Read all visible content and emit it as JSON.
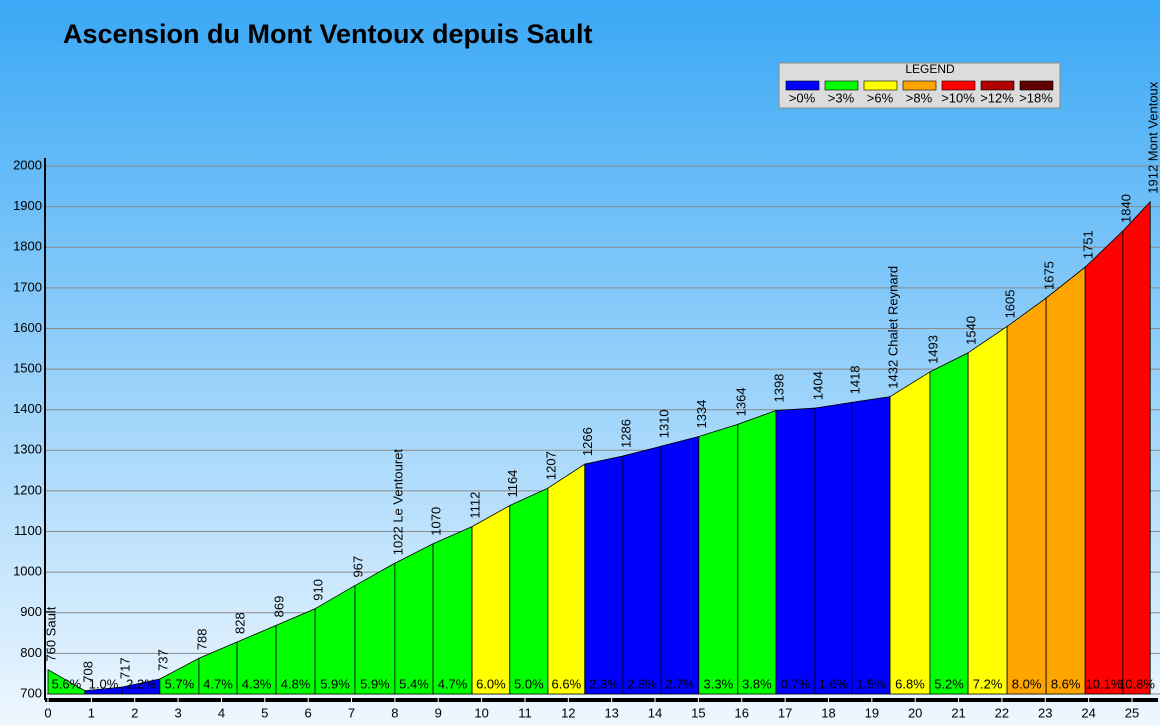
{
  "chart_data": {
    "type": "profile",
    "title": "Ascension du Mont Ventoux depuis Sault",
    "x": [
      0,
      0.85,
      1.71,
      2.58,
      3.48,
      4.36,
      5.26,
      6.16,
      7.08,
      8.0,
      8.88,
      9.78,
      10.65,
      11.53,
      12.38,
      13.26,
      14.14,
      15.01,
      15.91,
      16.79,
      17.69,
      18.54,
      19.42,
      20.34,
      21.22,
      22.12,
      23.02,
      23.92,
      24.79,
      25.42
    ],
    "values": [
      760,
      708,
      717,
      737,
      788,
      828,
      869,
      910,
      967,
      1022,
      1070,
      1112,
      1164,
      1207,
      1266,
      1286,
      1310,
      1334,
      1364,
      1398,
      1404,
      1418,
      1432,
      1493,
      1540,
      1605,
      1675,
      1751,
      1840,
      1912
    ],
    "value_labels": [
      "760 Sault",
      "708",
      "717",
      "737",
      "788",
      "828",
      "869",
      "910",
      "967",
      "1022 Le Ventouret",
      "1070",
      "1112",
      "1164",
      "1207",
      "1266",
      "1286",
      "1310",
      "1334",
      "1364",
      "1398",
      "1404",
      "1418",
      "1432 Chalet Reynard",
      "1493",
      "1540",
      "1605",
      "1675",
      "1751",
      "1840",
      "1912 Mont Ventoux"
    ],
    "gradients": [
      "5.6%",
      "1.0%",
      "2.2%",
      "5.7%",
      "4.7%",
      "4.3%",
      "4.8%",
      "5.9%",
      "5.9%",
      "5.4%",
      "4.7%",
      "6.0%",
      "5.0%",
      "6.6%",
      "2.3%",
      "2.8%",
      "2.7%",
      "3.3%",
      "3.8%",
      "0.7%",
      "1.6%",
      "1.5%",
      "6.8%",
      "5.2%",
      "7.2%",
      "8.0%",
      "8.6%",
      "10.1%",
      "10.8%"
    ],
    "segment_colors": [
      "#00ff00",
      "#0000ff",
      "#0000ff",
      "#00ff00",
      "#00ff00",
      "#00ff00",
      "#00ff00",
      "#00ff00",
      "#00ff00",
      "#00ff00",
      "#00ff00",
      "#ffff00",
      "#00ff00",
      "#ffff00",
      "#0000ff",
      "#0000ff",
      "#0000ff",
      "#00ff00",
      "#00ff00",
      "#0000ff",
      "#0000ff",
      "#0000ff",
      "#ffff00",
      "#00ff00",
      "#ffff00",
      "#ffa500",
      "#ffa500",
      "#ff0000",
      "#ff0000"
    ],
    "xlim": [
      0,
      25.6
    ],
    "xticks": [
      0,
      1,
      2,
      3,
      4,
      5,
      6,
      7,
      8,
      9,
      10,
      11,
      12,
      13,
      14,
      15,
      16,
      17,
      18,
      19,
      20,
      21,
      22,
      23,
      24,
      25
    ],
    "ylim": [
      700,
      2000
    ],
    "yticks": [
      700,
      800,
      900,
      1000,
      1100,
      1200,
      1300,
      1400,
      1500,
      1600,
      1700,
      1800,
      1900,
      2000
    ],
    "grid": true,
    "legend": {
      "title": "LEGEND",
      "items": [
        {
          "label": ">0%",
          "color": "#0000ff"
        },
        {
          "label": ">3%",
          "color": "#00ff00"
        },
        {
          "label": ">6%",
          "color": "#ffff00"
        },
        {
          "label": ">8%",
          "color": "#ffa500"
        },
        {
          "label": ">10%",
          "color": "#ff0000"
        },
        {
          "label": ">12%",
          "color": "#b00000"
        },
        {
          "label": ">18%",
          "color": "#600000"
        }
      ]
    }
  }
}
